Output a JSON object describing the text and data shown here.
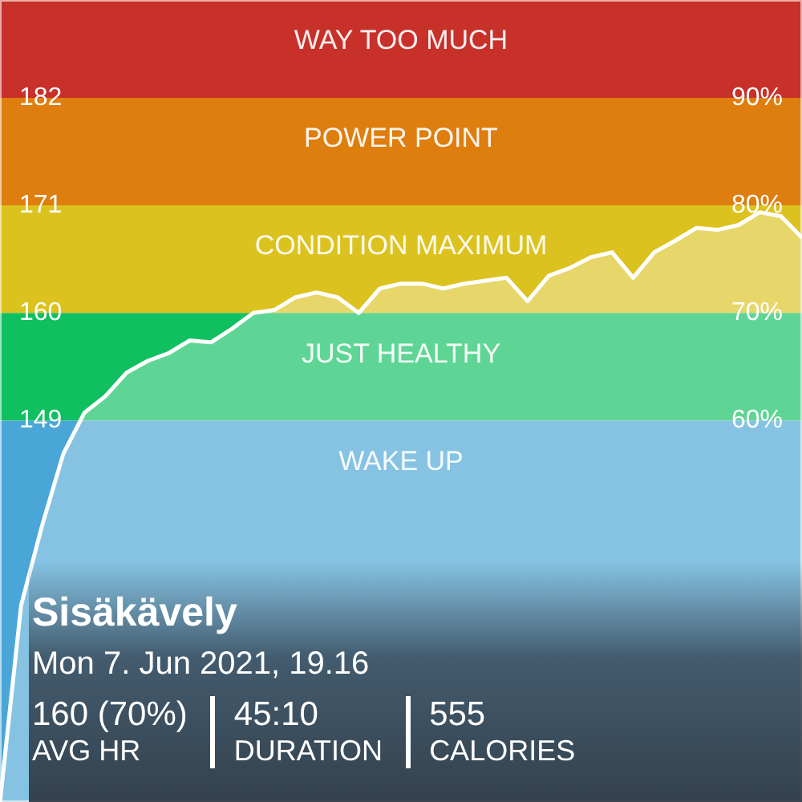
{
  "chart_data": {
    "type": "area",
    "title": "Sisäkävely",
    "subtitle": "Mon 7. Jun 2021, 19.16",
    "annotations": [
      "160 (70%)",
      "AVG HR",
      "45:10",
      "DURATION",
      "555",
      "CALORIES"
    ],
    "categories": [
      null,
      null,
      null,
      null,
      null,
      null,
      null,
      null,
      null,
      null,
      null,
      null,
      null,
      null,
      null,
      null,
      null,
      null,
      null,
      null,
      null,
      null,
      null,
      null,
      null,
      null,
      null,
      null,
      null,
      null,
      null,
      null,
      null,
      null,
      null,
      null,
      null,
      null,
      null
    ],
    "ylim": [
      110,
      192
    ],
    "yticks": [
      149,
      160,
      171,
      182
    ],
    "y2lim": [
      24.5,
      99.1
    ],
    "y2ticks": [
      {
        "value": 60,
        "label": "60%"
      },
      {
        "value": 70,
        "label": "70%"
      },
      {
        "value": 80,
        "label": "80%"
      },
      {
        "value": 90,
        "label": "90%"
      }
    ],
    "tick_labels": "y",
    "legend": false,
    "marker": "none",
    "line_style": "solid",
    "bands": [
      {
        "axis": "y",
        "from": 182,
        "to": 192,
        "label": "WAY TOO MUCH",
        "color": "#c8302a"
      },
      {
        "axis": "y",
        "from": 171,
        "to": 182,
        "label": "POWER POINT",
        "color": "#de7e0e"
      },
      {
        "axis": "y",
        "from": 160,
        "to": 171,
        "label": "CONDITION MAXIMUM",
        "color": "#dcc21e"
      },
      {
        "axis": "y",
        "from": 149,
        "to": 160,
        "label": "JUST HEALTHY",
        "color": "#10c060"
      },
      {
        "axis": "y",
        "from": 110,
        "to": 149,
        "label": "WAKE UP",
        "color": "#4aa6d6"
      }
    ],
    "series": [
      {
        "color": "#ffffff",
        "values": [
          110,
          130.1,
          138.3,
          145.6,
          149.8,
          151.5,
          153.9,
          155.1,
          155.9,
          157.2,
          157.0,
          158.4,
          160,
          160.3,
          161.6,
          162.1,
          161.6,
          160,
          162.5,
          163,
          163,
          162.5,
          163,
          163.3,
          163.6,
          161.2,
          163.8,
          164.6,
          165.7,
          166.2,
          163.6,
          166.2,
          167.4,
          168.7,
          168.5,
          169,
          170.3,
          169.9,
          167.7
        ]
      }
    ]
  }
}
